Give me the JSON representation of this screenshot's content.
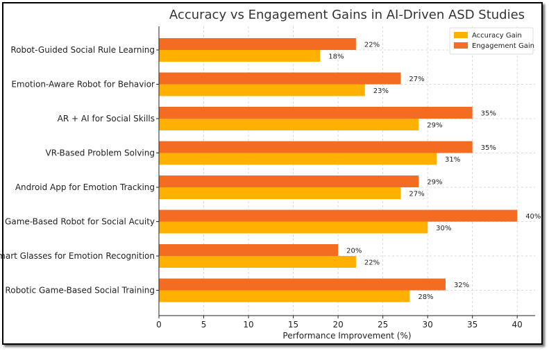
{
  "chart_data": {
    "type": "bar",
    "orientation": "horizontal",
    "title": "Accuracy vs Engagement Gains in AI-Driven ASD Studies",
    "xlabel": "Performance Improvement (%)",
    "ylabel": "",
    "xlim": [
      0,
      42
    ],
    "xticks": [
      0,
      5,
      10,
      15,
      20,
      25,
      30,
      35,
      40
    ],
    "grid": true,
    "legend_position": "top-right",
    "categories": [
      "Robot-Guided Social Rule Learning",
      "Emotion-Aware Robot for Behavior",
      "AR + AI for Social Skills",
      "VR-Based Problem Solving",
      "Android App for Emotion Tracking",
      "Game-Based Robot for Social Acuity",
      "Smart Glasses for Emotion Recognition",
      "Robotic Game-Based Social Training"
    ],
    "series": [
      {
        "name": "Accuracy Gain",
        "color": "#FFB000",
        "values": [
          18,
          23,
          29,
          31,
          27,
          30,
          22,
          28
        ]
      },
      {
        "name": "Engagement Gain",
        "color": "#F36C21",
        "values": [
          22,
          27,
          35,
          35,
          29,
          40,
          20,
          32
        ]
      }
    ],
    "value_suffix": "%"
  }
}
